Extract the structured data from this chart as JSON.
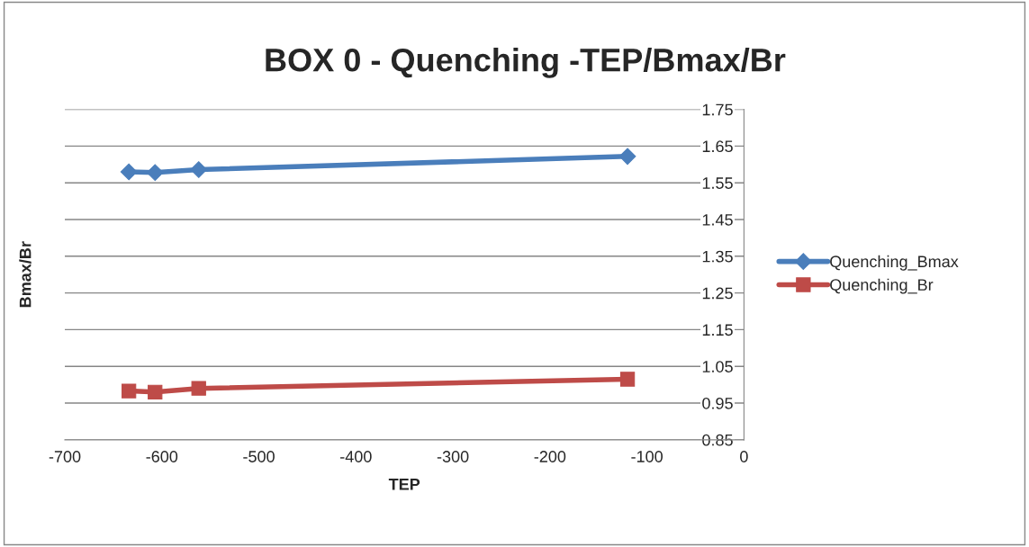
{
  "chart_data": {
    "type": "line",
    "title": "BOX 0 - Quenching -TEP/Bmax/Br",
    "xlabel": "TEP",
    "ylabel": "Bmax/Br",
    "x": [
      -634,
      -607,
      -562,
      -120
    ],
    "series": [
      {
        "name": "Quenching_Bmax",
        "color": "#4a7ebb",
        "marker": "diamond",
        "values": [
          1.58,
          1.578,
          1.586,
          1.622
        ]
      },
      {
        "name": "Quenching_Br",
        "color": "#be4b48",
        "marker": "square",
        "values": [
          0.983,
          0.98,
          0.99,
          1.015
        ]
      }
    ],
    "xlim": [
      -700,
      0
    ],
    "xticks": [
      -700,
      -600,
      -500,
      -400,
      -300,
      -200,
      -100,
      0
    ],
    "ylim": [
      0.85,
      1.75
    ],
    "yticks": [
      0.85,
      0.95,
      1.05,
      1.15,
      1.25,
      1.35,
      1.45,
      1.55,
      1.65,
      1.75
    ],
    "grid": "y",
    "legend": "right",
    "line_style": "solid"
  }
}
